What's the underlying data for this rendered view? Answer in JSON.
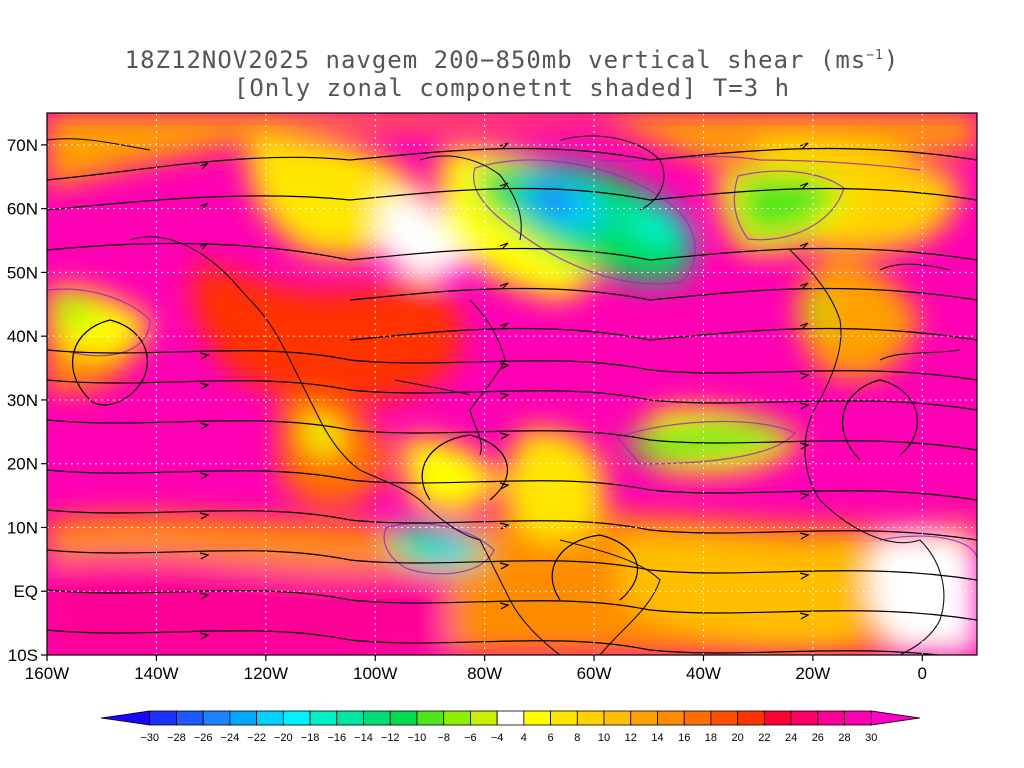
{
  "title": {
    "line1_main": "18Z12NOV2025 navgem 200−850mb vertical shear (ms",
    "line1_sup": "−1",
    "line1_tail": ")",
    "line2": "[Only zonal componetnt shaded] T=3 h"
  },
  "axes": {
    "lat_labels": [
      "70N",
      "60N",
      "50N",
      "40N",
      "30N",
      "20N",
      "10N",
      "EQ",
      "10S"
    ],
    "lat_values": [
      70,
      60,
      50,
      40,
      30,
      20,
      10,
      0,
      -10
    ],
    "lon_labels": [
      "160W",
      "140W",
      "120W",
      "100W",
      "80W",
      "60W",
      "40W",
      "20W",
      "0"
    ],
    "lon_values": [
      -160,
      -140,
      -120,
      -100,
      -80,
      -60,
      -40,
      -20,
      0
    ],
    "lon_range": [
      -160,
      10
    ],
    "lat_range": [
      -10,
      75
    ],
    "grid": "dotted"
  },
  "colorbar": {
    "labels": [
      "−30",
      "−28",
      "−26",
      "−24",
      "−22",
      "−20",
      "−18",
      "−16",
      "−14",
      "−12",
      "−10",
      "−8",
      "−6",
      "−4",
      "4",
      "6",
      "8",
      "10",
      "12",
      "14",
      "16",
      "18",
      "20",
      "22",
      "24",
      "26",
      "28",
      "30"
    ],
    "colors": [
      "#1a05ff",
      "#1e32ff",
      "#1e5aff",
      "#1e82ff",
      "#00a8ff",
      "#00d2ff",
      "#00f0ff",
      "#00f0c8",
      "#00e6a0",
      "#00dc78",
      "#00dc50",
      "#50e61e",
      "#8cf000",
      "#c8f000",
      "#ffffff",
      "#ffff00",
      "#ffe600",
      "#ffd200",
      "#ffbe00",
      "#ffa000",
      "#ff8c00",
      "#ff6e00",
      "#ff5000",
      "#ff3200",
      "#ff0032",
      "#ff0064",
      "#ff0096",
      "#ff00b4",
      "#ff00c8"
    ]
  }
}
